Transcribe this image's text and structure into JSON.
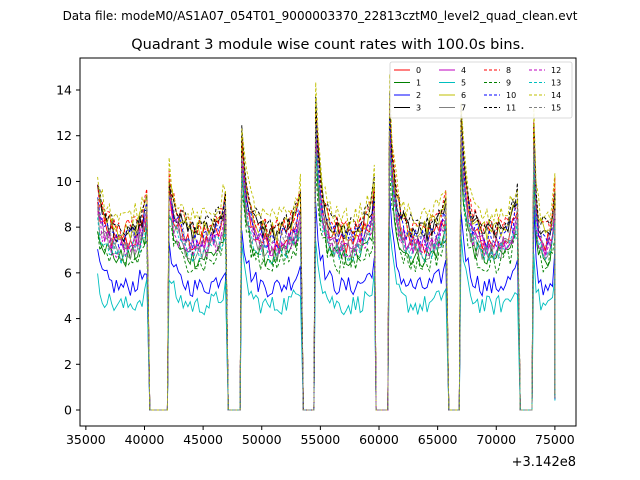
{
  "suptitle": "Data file: modeM0/AS1A07_054T01_9000003370_22813cztM0_level2_quad_clean.evt",
  "chart_data": {
    "type": "line",
    "title": "Quadrant 3 module wise count rates with 100.0s bins.",
    "xlabel": "",
    "ylabel": "",
    "offset_text": "+3.142e8",
    "xlim": [
      34500,
      76800
    ],
    "ylim": [
      -0.7,
      15.4
    ],
    "xticks": [
      35000,
      40000,
      45000,
      50000,
      55000,
      60000,
      65000,
      70000,
      75000
    ],
    "xtick_labels": [
      "35000",
      "40000",
      "45000",
      "50000",
      "55000",
      "60000",
      "65000",
      "70000",
      "75000"
    ],
    "yticks": [
      0,
      2,
      4,
      6,
      8,
      10,
      12,
      14
    ],
    "ytick_labels": [
      "0",
      "2",
      "4",
      "6",
      "8",
      "10",
      "12",
      "14"
    ],
    "legend_position": "top-right",
    "bin_seconds": 100,
    "time_unit_note": "x values are seconds offset from 3.142e8",
    "segments": [
      [
        36000,
        40300
      ],
      [
        42100,
        47000
      ],
      [
        48300,
        53400
      ],
      [
        54600,
        59600
      ],
      [
        60900,
        65800
      ],
      [
        67000,
        71900
      ],
      [
        73200,
        75000
      ]
    ],
    "gaps_value": 0,
    "series": [
      {
        "name": "0",
        "color": "#ff0000",
        "style": "solid",
        "level": 8.0
      },
      {
        "name": "1",
        "color": "#008000",
        "style": "solid",
        "level": 7.3
      },
      {
        "name": "2",
        "color": "#0000ff",
        "style": "solid",
        "level": 5.9
      },
      {
        "name": "3",
        "color": "#000000",
        "style": "solid",
        "level": 8.5
      },
      {
        "name": "4",
        "color": "#bf00bf",
        "style": "solid",
        "level": 7.9
      },
      {
        "name": "5",
        "color": "#00bfbf",
        "style": "solid",
        "level": 5.0
      },
      {
        "name": "6",
        "color": "#bfbf00",
        "style": "solid",
        "level": 8.6
      },
      {
        "name": "7",
        "color": "#808080",
        "style": "solid",
        "level": 7.6
      },
      {
        "name": "8",
        "color": "#ff0000",
        "style": "dashed",
        "level": 8.7
      },
      {
        "name": "9",
        "color": "#008000",
        "style": "dashed",
        "level": 7.0
      },
      {
        "name": "10",
        "color": "#0000ff",
        "style": "dashed",
        "level": 8.2
      },
      {
        "name": "11",
        "color": "#000000",
        "style": "dashed",
        "level": 8.8
      },
      {
        "name": "12",
        "color": "#bf00bf",
        "style": "dashed",
        "level": 7.7
      },
      {
        "name": "13",
        "color": "#00bfbf",
        "style": "dashed",
        "level": 7.5
      },
      {
        "name": "14",
        "color": "#bfbf00",
        "style": "dashed",
        "level": 9.2
      },
      {
        "name": "15",
        "color": "#808080",
        "style": "dashed",
        "level": 8.0
      }
    ]
  }
}
